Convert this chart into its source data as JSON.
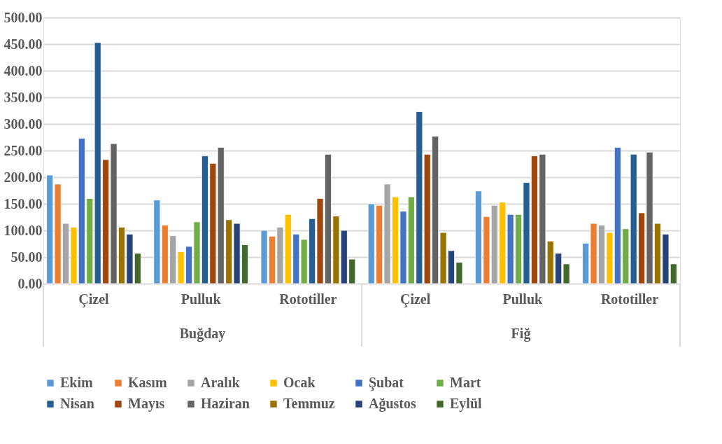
{
  "chart_data": {
    "type": "bar",
    "categories": [
      "Çizel",
      "Pulluk",
      "Rototiller",
      "Çizel",
      "Pulluk",
      "Rototiller"
    ],
    "annotations": [
      "Buğday",
      "Fiğ"
    ],
    "ylim": [
      0,
      500
    ],
    "yticks": [
      {
        "value": 0,
        "label": "0.00"
      },
      {
        "value": 50,
        "label": "50.00"
      },
      {
        "value": 100,
        "label": "100.00"
      },
      {
        "value": 150,
        "label": "150.00"
      },
      {
        "value": 200,
        "label": "200.00"
      },
      {
        "value": 250,
        "label": "250.00"
      },
      {
        "value": 300,
        "label": "300.00"
      },
      {
        "value": 350,
        "label": "350.00"
      },
      {
        "value": 400,
        "label": "400.00"
      },
      {
        "value": 450,
        "label": "450.00"
      },
      {
        "value": 500,
        "label": "500.00"
      }
    ],
    "grid": "y",
    "legend": "bottom",
    "series": [
      {
        "name": "Ekim",
        "color": "#5b9bd5",
        "values": [
          204,
          157,
          100,
          150,
          174,
          76
        ]
      },
      {
        "name": "Kasım",
        "color": "#ed7d31",
        "values": [
          187,
          110,
          89,
          147,
          126,
          113
        ]
      },
      {
        "name": "Aralık",
        "color": "#a5a5a5",
        "values": [
          113,
          90,
          106,
          187,
          147,
          110
        ]
      },
      {
        "name": "Ocak",
        "color": "#ffc000",
        "values": [
          106,
          60,
          130,
          163,
          153,
          96
        ]
      },
      {
        "name": "Şubat",
        "color": "#4472c4",
        "values": [
          273,
          70,
          93,
          136,
          130,
          256
        ]
      },
      {
        "name": "Mart",
        "color": "#70ad47",
        "values": [
          160,
          116,
          83,
          163,
          130,
          103
        ]
      },
      {
        "name": "Nisan",
        "color": "#255e91",
        "values": [
          453,
          240,
          122,
          323,
          190,
          243
        ]
      },
      {
        "name": "Mayıs",
        "color": "#9e480e",
        "values": [
          233,
          226,
          160,
          243,
          240,
          133
        ]
      },
      {
        "name": "Haziran",
        "color": "#636363",
        "values": [
          263,
          256,
          243,
          277,
          243,
          247
        ]
      },
      {
        "name": "Temmuz",
        "color": "#997300",
        "values": [
          106,
          120,
          127,
          96,
          80,
          113
        ]
      },
      {
        "name": "Ağustos",
        "color": "#264478",
        "values": [
          93,
          113,
          100,
          62,
          57,
          93
        ]
      },
      {
        "name": "Eylül",
        "color": "#43682b",
        "values": [
          57,
          73,
          46,
          40,
          37,
          37
        ]
      }
    ]
  }
}
